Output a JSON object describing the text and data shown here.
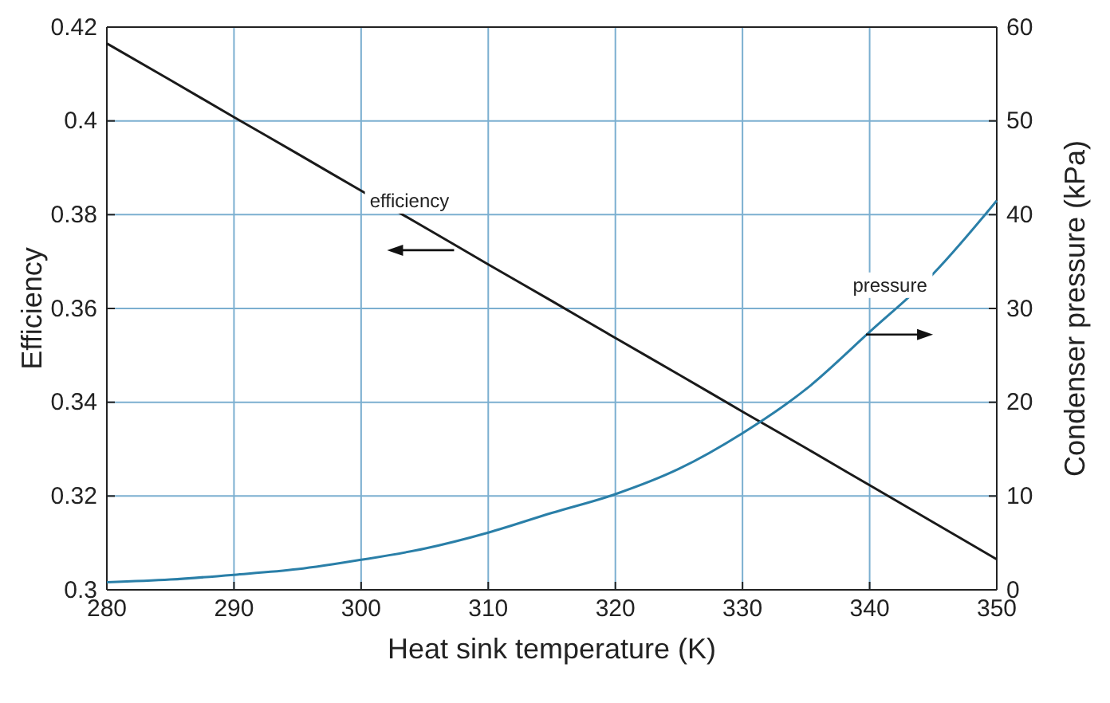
{
  "chart_data": {
    "type": "line",
    "xlabel": "Heat sink temperature (K)",
    "ylabel": "Efficiency",
    "y2label": "Condenser pressure (kPa)",
    "x": [
      280,
      285,
      290,
      295,
      300,
      305,
      310,
      315,
      320,
      325,
      330,
      335,
      340,
      345,
      350
    ],
    "series": [
      {
        "name": "efficiency",
        "color": "#1a1a1a",
        "values": [
          0.4165,
          0.4087,
          0.4008,
          0.393,
          0.3851,
          0.3773,
          0.3694,
          0.3616,
          0.3537,
          0.3459,
          0.338,
          0.3302,
          0.3223,
          0.3144,
          0.3065
        ]
      },
      {
        "name": "pressure",
        "color": "#2a7fa8",
        "axis": "y2",
        "values": [
          0.8,
          1.1,
          1.6,
          2.2,
          3.2,
          4.4,
          6.1,
          8.2,
          10.2,
          12.9,
          16.7,
          21.4,
          27.5,
          33.7,
          41.5
        ]
      }
    ],
    "xlim": [
      280,
      350
    ],
    "xticks": [
      280,
      290,
      300,
      310,
      320,
      330,
      340,
      350
    ],
    "ylim": [
      0.3,
      0.42
    ],
    "yticks": [
      0.3,
      0.32,
      0.34,
      0.36,
      0.38,
      0.4,
      0.42
    ],
    "y2lim": [
      0,
      60
    ],
    "y2ticks": [
      0,
      10,
      20,
      30,
      40,
      50,
      60
    ],
    "grid": true
  }
}
